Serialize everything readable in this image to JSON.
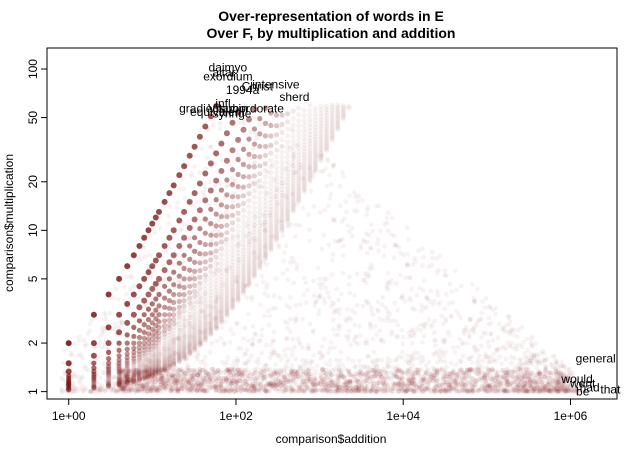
{
  "chart_data": {
    "type": "scatter",
    "title": "Over-representation of words in E",
    "subtitle": "Over F, by multiplication and addition",
    "xlabel": "comparison$addition",
    "ylabel": "comparison$multiplication",
    "x_scale": "log",
    "y_scale": "log",
    "xlim": [
      0.55,
      3600000
    ],
    "ylim": [
      0.9,
      135
    ],
    "x_ticks": [
      1,
      100,
      10000,
      1000000
    ],
    "x_tick_labels": [
      "1e+00",
      "1e+02",
      "1e+04",
      "1e+06"
    ],
    "y_ticks": [
      1,
      2,
      5,
      10,
      20,
      50,
      100
    ],
    "y_tick_labels": [
      "1",
      "2",
      "5",
      "10",
      "20",
      "50",
      "100"
    ],
    "point_color": "#7a1010",
    "label_points": [
      {
        "word": "daimyo",
        "x": 80,
        "y": 102
      },
      {
        "word": "altar",
        "x": 72,
        "y": 95
      },
      {
        "word": "exordium",
        "x": 80,
        "y": 90
      },
      {
        "word": "intensive",
        "x": 300,
        "y": 80
      },
      {
        "word": "Christ",
        "x": 180,
        "y": 78
      },
      {
        "word": "1994a",
        "x": 120,
        "y": 74
      },
      {
        "word": "sherd",
        "x": 500,
        "y": 67
      },
      {
        "word": "infl",
        "x": 70,
        "y": 61
      },
      {
        "word": "gradient",
        "x": 38,
        "y": 57
      },
      {
        "word": "Vitamin",
        "x": 80,
        "y": 57
      },
      {
        "word": "subordorate",
        "x": 155,
        "y": 57
      },
      {
        "word": "equivalent",
        "x": 60,
        "y": 54
      },
      {
        "word": "syringe",
        "x": 90,
        "y": 53
      },
      {
        "word": "general",
        "x": 2000000,
        "y": 1.6
      },
      {
        "word": "would",
        "x": 1200000,
        "y": 1.2
      },
      {
        "word": "went",
        "x": 1400000,
        "y": 1.12
      },
      {
        "word": "had",
        "x": 1700000,
        "y": 1.06
      },
      {
        "word": "be",
        "x": 1400000,
        "y": 1.0
      },
      {
        "word": "that",
        "x": 3000000,
        "y": 1.03
      }
    ]
  }
}
